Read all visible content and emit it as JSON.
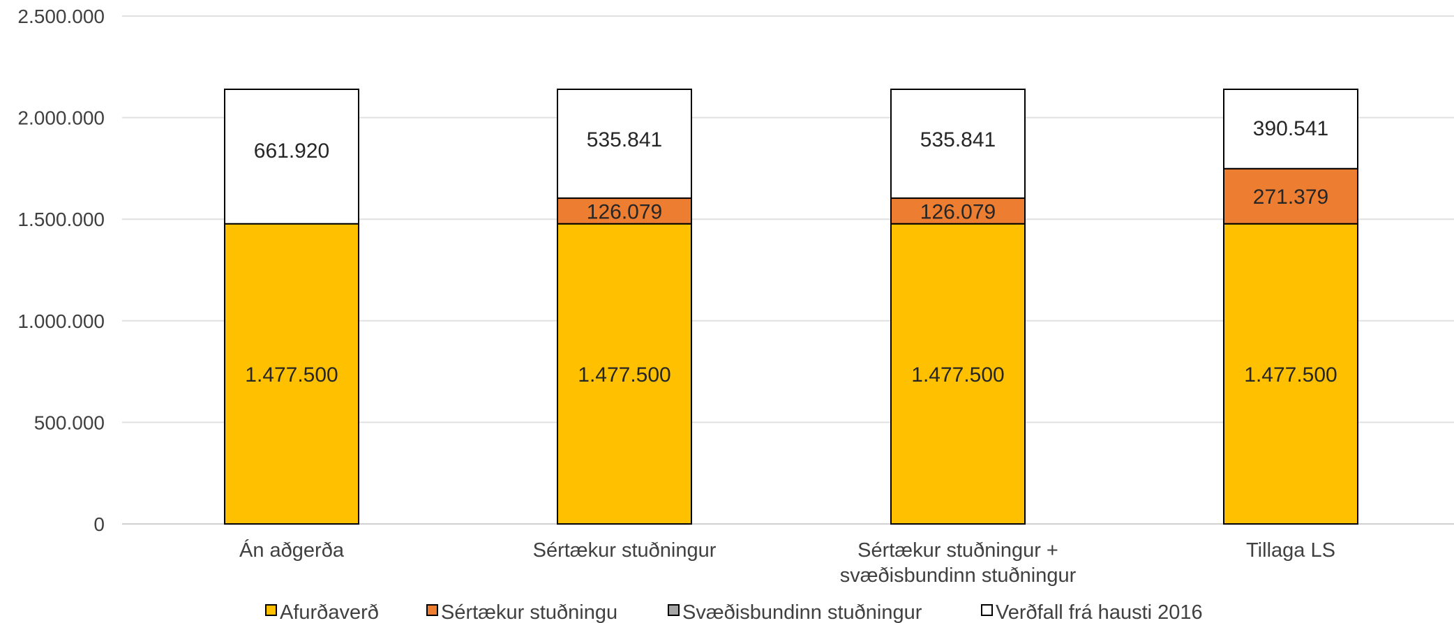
{
  "chart_data": {
    "type": "bar",
    "stacked": true,
    "title": "",
    "xlabel": "",
    "ylabel": "",
    "ylim": [
      0,
      2500000
    ],
    "yticks": [
      0,
      500000,
      1000000,
      1500000,
      2000000,
      2500000
    ],
    "ytick_labels": [
      "0",
      "500.000",
      "1.000.000",
      "1.500.000",
      "2.000.000",
      "2.500.000"
    ],
    "grid": true,
    "legend_position": "bottom",
    "categories": [
      [
        "Án aðgerða"
      ],
      [
        "Sértækur stuðningur"
      ],
      [
        "Sértækur stuðningur +",
        "svæðisbundinn stuðningur"
      ],
      [
        "Tillaga LS"
      ]
    ],
    "series": [
      {
        "name": "Afurðaverð",
        "color": "#FFC000",
        "values": [
          1477500,
          1477500,
          1477500,
          1477500
        ],
        "labels": [
          "1.477.500",
          "1.477.500",
          "1.477.500",
          "1.477.500"
        ]
      },
      {
        "name": "Sértækur stuðningu",
        "color": "#ED7D31",
        "values": [
          0,
          126079,
          126079,
          271379
        ],
        "labels": [
          "",
          "126.079",
          "126.079",
          "271.379"
        ]
      },
      {
        "name": "Svæðisbundinn stuðningur",
        "color": "#A5A5A5",
        "values": [
          0,
          0,
          0,
          0
        ],
        "labels": [
          "",
          "",
          "",
          ""
        ]
      },
      {
        "name": "Verðfall frá hausti 2016",
        "color": "#FFFFFF",
        "values": [
          661920,
          535841,
          535841,
          390541
        ],
        "labels": [
          "661.920",
          "535.841",
          "535.841",
          "390.541"
        ]
      }
    ]
  }
}
